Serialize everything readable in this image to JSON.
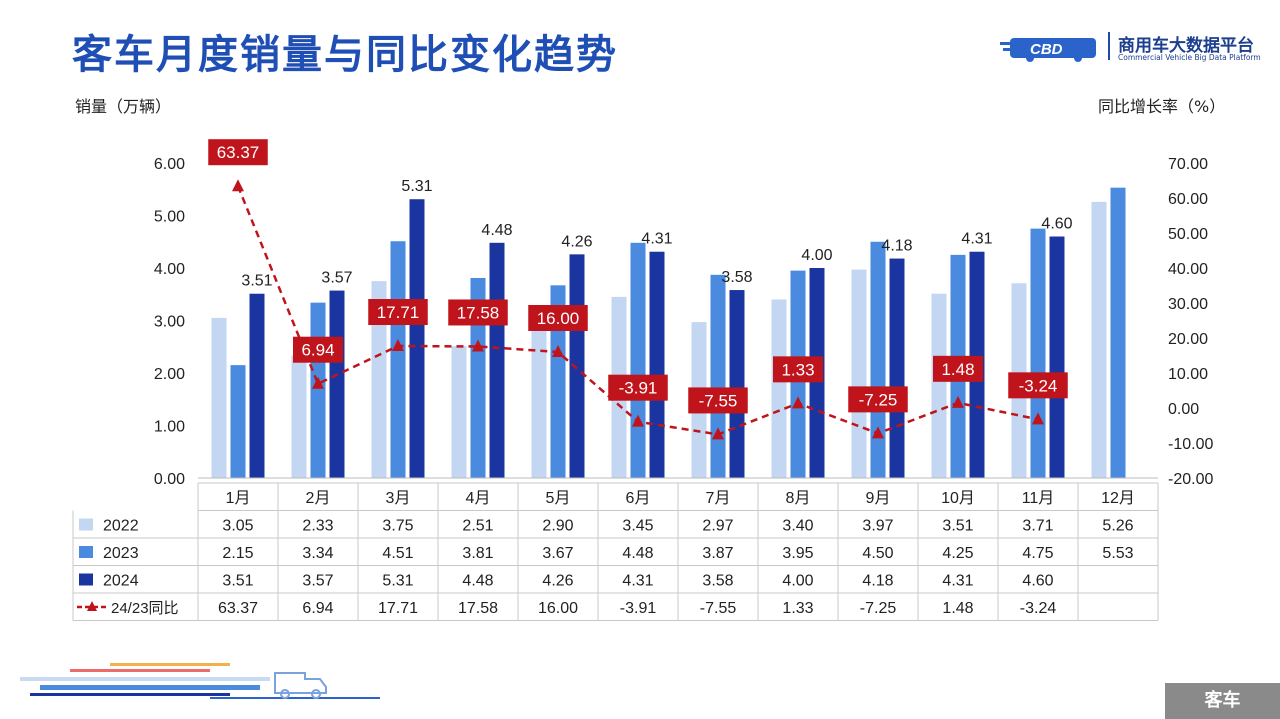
{
  "header": {
    "title": "客车月度销量与同比变化趋势",
    "logo_cn": "商用车大数据平台",
    "logo_en": "Commercial Vehicle Big Data Platform"
  },
  "chart_data": {
    "type": "bar",
    "categories": [
      "1月",
      "2月",
      "3月",
      "4月",
      "5月",
      "6月",
      "7月",
      "8月",
      "9月",
      "10月",
      "11月",
      "12月"
    ],
    "ylabel": "销量（万辆）",
    "y2label": "同比增长率（%）",
    "ylim": [
      0,
      6
    ],
    "y_ticks": [
      "0.00",
      "1.00",
      "2.00",
      "3.00",
      "4.00",
      "5.00",
      "6.00"
    ],
    "y2lim": [
      -20,
      70
    ],
    "y2_ticks": [
      "-20.00",
      "-10.00",
      "0.00",
      "10.00",
      "20.00",
      "30.00",
      "40.00",
      "50.00",
      "60.00",
      "70.00"
    ],
    "series": [
      {
        "name": "2022",
        "color": "#c3d6f2",
        "values": [
          3.05,
          2.33,
          3.75,
          2.51,
          2.9,
          3.45,
          2.97,
          3.4,
          3.97,
          3.51,
          3.71,
          5.26
        ],
        "labels": [
          "3.05",
          "2.33",
          "3.75",
          "2.51",
          "2.90",
          "3.45",
          "2.97",
          "3.40",
          "3.97",
          "3.51",
          "3.71",
          "5.26"
        ]
      },
      {
        "name": "2023",
        "color": "#4a8be0",
        "values": [
          2.15,
          3.34,
          4.51,
          3.81,
          3.67,
          4.48,
          3.87,
          3.95,
          4.5,
          4.25,
          4.75,
          5.53
        ],
        "labels": [
          "2.15",
          "3.34",
          "4.51",
          "3.81",
          "3.67",
          "4.48",
          "3.87",
          "3.95",
          "4.50",
          "4.25",
          "4.75",
          "5.53"
        ]
      },
      {
        "name": "2024",
        "color": "#1a35a0",
        "values": [
          3.51,
          3.57,
          5.31,
          4.48,
          4.26,
          4.31,
          3.58,
          4.0,
          4.18,
          4.31,
          4.6,
          null
        ],
        "labels": [
          "3.51",
          "3.57",
          "5.31",
          "4.48",
          "4.26",
          "4.31",
          "3.58",
          "4.00",
          "4.18",
          "4.31",
          "4.60",
          ""
        ]
      }
    ],
    "line_series": {
      "name": "24/23同比",
      "color": "#c0141c",
      "values": [
        63.37,
        6.94,
        17.71,
        17.58,
        16.0,
        -3.91,
        -7.55,
        1.33,
        -7.25,
        1.48,
        -3.24,
        null
      ],
      "labels": [
        "63.37",
        "6.94",
        "17.71",
        "17.58",
        "16.00",
        "-3.91",
        "-7.55",
        "1.33",
        "-7.25",
        "1.48",
        "-3.24",
        ""
      ]
    },
    "legend": "data-table"
  },
  "footer": {
    "tag": "客车"
  }
}
